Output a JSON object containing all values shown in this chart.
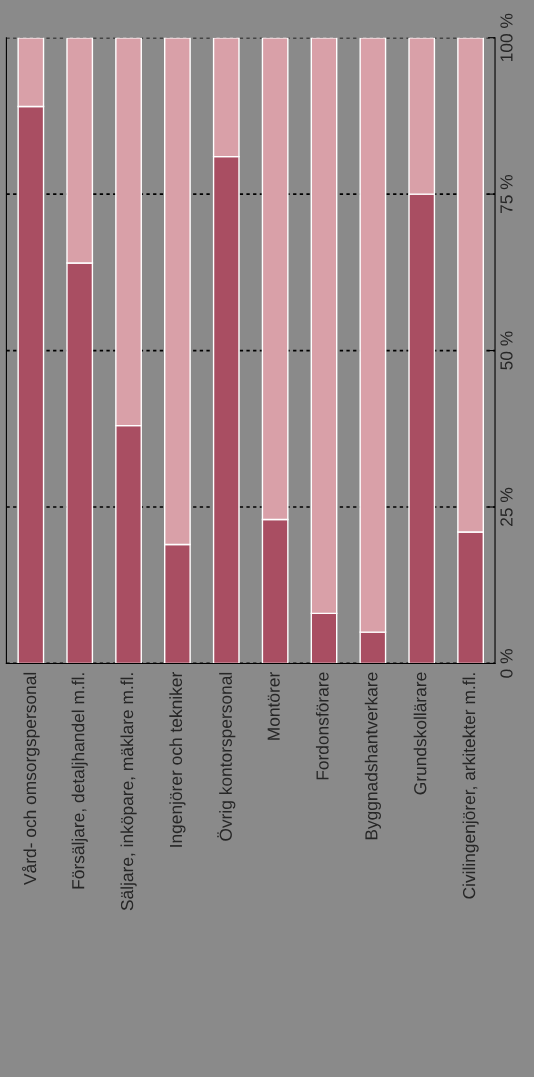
{
  "chart_data": {
    "type": "bar",
    "stacked": true,
    "categories": [
      "Vård- och omsorgspersonal",
      "Försäljare, detaljhandel m.fl.",
      "Säljare, inköpare, mäklare m.fl.",
      "Ingenjörer och tekniker",
      "Övrig kontorspersonal",
      "Montörer",
      "Fordonsförare",
      "Byggnadshantverkare",
      "Grundskollärare",
      "Civilingenjörer, arkitekter m.fl."
    ],
    "series": [
      {
        "color": "#a94e62",
        "values": [
          89,
          64,
          38,
          19,
          81,
          23,
          8,
          5,
          75,
          21
        ]
      },
      {
        "color": "#d9a0a8",
        "values": [
          11,
          36,
          62,
          81,
          19,
          77,
          92,
          95,
          25,
          79
        ]
      }
    ],
    "ylim": [
      0,
      100
    ],
    "yticks": [
      {
        "value": 0,
        "label": "0 %"
      },
      {
        "value": 25,
        "label": "25 %"
      },
      {
        "value": 50,
        "label": "50 %"
      },
      {
        "value": 75,
        "label": "75 %"
      },
      {
        "value": 100,
        "label": "100 %"
      }
    ],
    "grid": "y"
  }
}
